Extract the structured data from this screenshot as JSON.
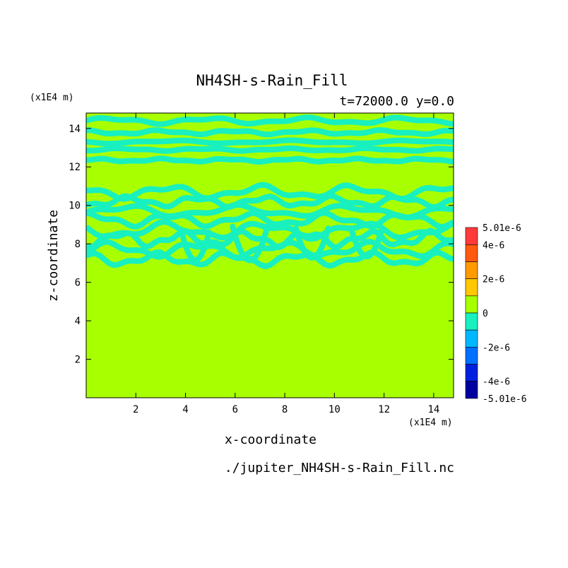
{
  "chart_data": {
    "type": "heatmap",
    "title": "NH4SH-s-Rain_Fill",
    "subtitle": "t=72000.0 y=0.0",
    "xlabel": "x-coordinate",
    "ylabel": "z-coordinate",
    "x_unit": "(x1E4 m)",
    "y_unit": "(x1E4 m)",
    "xlim": [
      0,
      14.8
    ],
    "ylim": [
      0,
      14.8
    ],
    "x_ticks": [
      "2",
      "4",
      "6",
      "8",
      "10",
      "12",
      "14"
    ],
    "y_ticks": [
      "2",
      "4",
      "6",
      "8",
      "10",
      "12",
      "14"
    ],
    "x_tick_values": [
      2,
      4,
      6,
      8,
      10,
      12,
      14
    ],
    "y_tick_values": [
      2,
      4,
      6,
      8,
      10,
      12,
      14
    ],
    "footer": "./jupiter_NH4SH-s-Rain_Fill.nc",
    "background_value": 0,
    "background_color": "#a8ff00",
    "contour_color": "#18f0c0",
    "colorbar": {
      "labels": [
        "5.01e-6",
        "4e-6",
        "2e-6",
        "0",
        "-2e-6",
        "-4e-6",
        "-5.01e-6"
      ],
      "label_values": [
        5.01e-06,
        4e-06,
        2e-06,
        0,
        -2e-06,
        -4e-06,
        -5.01e-06
      ],
      "bands": [
        {
          "from": 4e-06,
          "to": 5.01e-06,
          "color": "#ff3a3a"
        },
        {
          "from": 3e-06,
          "to": 4e-06,
          "color": "#ff5a10"
        },
        {
          "from": 2e-06,
          "to": 3e-06,
          "color": "#ff9a00"
        },
        {
          "from": 1e-06,
          "to": 2e-06,
          "color": "#ffc800"
        },
        {
          "from": 0,
          "to": 1e-06,
          "color": "#a8ff00"
        },
        {
          "from": -1e-06,
          "to": 0,
          "color": "#18f0c0"
        },
        {
          "from": -2e-06,
          "to": -1e-06,
          "color": "#00b8ff"
        },
        {
          "from": -3e-06,
          "to": -2e-06,
          "color": "#0070ff"
        },
        {
          "from": -4e-06,
          "to": -3e-06,
          "color": "#0020e0"
        },
        {
          "from": -5.01e-06,
          "to": -4e-06,
          "color": "#0000a0"
        }
      ]
    },
    "bands": [
      {
        "z": 14.4,
        "x_from": 0,
        "x_to": 14.8,
        "amp": 0.12,
        "freq": 1.6
      },
      {
        "z": 13.8,
        "x_from": 0,
        "x_to": 14.8,
        "amp": 0.08,
        "freq": 2.1
      },
      {
        "z": 13.3,
        "x_from": 0,
        "x_to": 14.8,
        "amp": 0.06,
        "freq": 1.3
      },
      {
        "z": 12.9,
        "x_from": 0,
        "x_to": 14.8,
        "amp": 0.05,
        "freq": 1.9
      },
      {
        "z": 12.35,
        "x_from": 0,
        "x_to": 14.8,
        "amp": 0.06,
        "freq": 2.4
      },
      {
        "z": 10.7,
        "x_from": 0,
        "x_to": 14.8,
        "amp": 0.25,
        "freq": 1.7
      },
      {
        "z": 10.2,
        "x_from": 0,
        "x_to": 14.8,
        "amp": 0.2,
        "freq": 2.3
      },
      {
        "z": 9.7,
        "x_from": 0,
        "x_to": 14.8,
        "amp": 0.22,
        "freq": 1.4
      },
      {
        "z": 9.25,
        "x_from": 0,
        "x_to": 14.8,
        "amp": 0.25,
        "freq": 2.0
      },
      {
        "z": 8.7,
        "x_from": 0,
        "x_to": 14.8,
        "amp": 0.3,
        "freq": 1.6
      },
      {
        "z": 8.25,
        "x_from": 0,
        "x_to": 14.8,
        "amp": 0.3,
        "freq": 2.5
      },
      {
        "z": 7.7,
        "x_from": 0,
        "x_to": 14.8,
        "amp": 0.28,
        "freq": 1.8
      },
      {
        "z": 7.2,
        "x_from": 0,
        "x_to": 14.8,
        "amp": 0.25,
        "freq": 2.2
      }
    ],
    "arches": [
      {
        "x": 6.6,
        "z_top": 8.9,
        "z_bottom": 6.7,
        "w": 1.4
      },
      {
        "x": 9.1,
        "z_top": 8.8,
        "z_bottom": 6.9,
        "w": 1.3
      },
      {
        "x": 11.3,
        "z_top": 8.7,
        "z_bottom": 7.0,
        "w": 1.2
      },
      {
        "x": 4.4,
        "z_top": 8.6,
        "z_bottom": 6.8,
        "w": 1.1
      }
    ]
  }
}
